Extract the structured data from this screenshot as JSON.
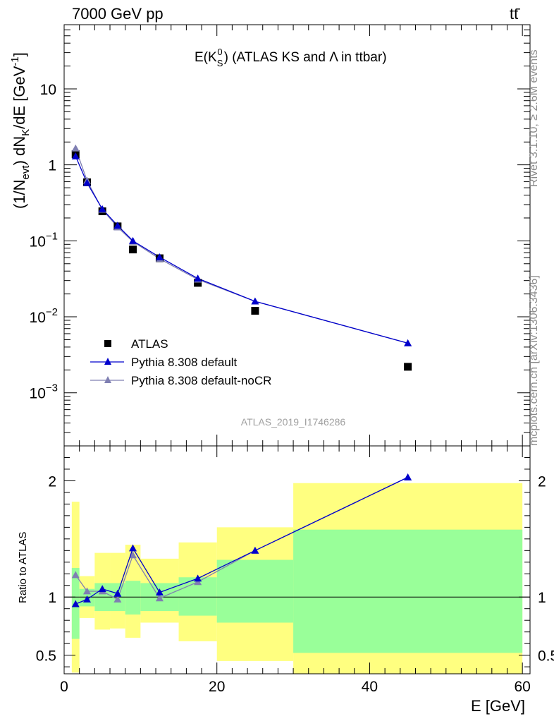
{
  "header": {
    "left": "7000 GeV pp",
    "right_base": "tt",
    "right_bar": "̄"
  },
  "side_labels": {
    "rivet": "Rivet 3.1.10, ≥ 2.6M events",
    "mcplots": "mcplots.cern.ch [arXiv:1306.3436]"
  },
  "chart_data": [
    {
      "type": "scatter",
      "title_parts": {
        "prefix": "E(K",
        "sub": "S",
        "sup": "0",
        "suffix": ") (ATLAS KS and Λ in ttbar)"
      },
      "ylabel_parts": {
        "p1": "(1/N",
        "s1": "evt",
        "p2": ") dN",
        "s2": "K",
        "p3": "/dE [GeV",
        "sup": "-1",
        "p4": "]"
      },
      "ylog": true,
      "ylim": [
        0.0002,
        70
      ],
      "xlim": [
        0,
        61
      ],
      "y_ticks": [
        {
          "value": 0.001,
          "base": "10",
          "exp": "−3"
        },
        {
          "value": 0.01,
          "base": "10",
          "exp": "−2"
        },
        {
          "value": 0.1,
          "base": "10",
          "exp": "−1"
        },
        {
          "value": 1,
          "label": "1"
        },
        {
          "value": 10,
          "label": "10"
        }
      ],
      "watermark": "ATLAS_2019_I1746286",
      "legend": {
        "position": "bottom-left",
        "entries": [
          "ATLAS",
          "Pythia 8.308 default",
          "Pythia 8.308 default-noCR"
        ]
      },
      "series": [
        {
          "name": "ATLAS",
          "marker": "square",
          "color": "#000000",
          "x": [
            1.5,
            3,
            5,
            7,
            9,
            12.5,
            17.5,
            25,
            45
          ],
          "y": [
            1.38,
            0.59,
            0.245,
            0.155,
            0.077,
            0.059,
            0.028,
            0.012,
            0.0022
          ]
        },
        {
          "name": "Pythia 8.308 default",
          "marker": "triangle",
          "color": "#0000cc",
          "x": [
            1.5,
            3,
            5,
            7,
            9,
            12.5,
            17.5,
            25,
            45
          ],
          "y": [
            1.3,
            0.58,
            0.262,
            0.159,
            0.1,
            0.061,
            0.032,
            0.016,
            0.0045
          ]
        },
        {
          "name": "Pythia 8.308 default-noCR",
          "marker": "triangle",
          "color": "#7f7fb2",
          "x": [
            1.5,
            3,
            5,
            7,
            9,
            12.5,
            17.5,
            25,
            45
          ],
          "y": [
            1.65,
            0.62,
            0.258,
            0.151,
            0.098,
            0.058,
            0.031,
            0.016,
            0.0045
          ]
        }
      ]
    },
    {
      "type": "line",
      "ylabel": "Ratio to ATLAS",
      "xlabel": "E [GeV]",
      "xlim": [
        0,
        61
      ],
      "ylim": [
        0.34,
        2.3
      ],
      "x_ticks": [
        0,
        20,
        40,
        60
      ],
      "y_ticks": [
        0.5,
        1,
        2
      ],
      "bands": [
        {
          "lo_x": 1,
          "hi_x": 2,
          "y1": [
            0.64,
            1.25
          ],
          "y2": [
            0.35,
            1.82
          ]
        },
        {
          "lo_x": 2,
          "hi_x": 4,
          "y1": [
            0.92,
            1.07
          ],
          "y2": [
            0.82,
            1.18
          ]
        },
        {
          "lo_x": 4,
          "hi_x": 6,
          "y1": [
            0.88,
            1.12
          ],
          "y2": [
            0.72,
            1.38
          ]
        },
        {
          "lo_x": 6,
          "hi_x": 8,
          "y1": [
            0.88,
            1.12
          ],
          "y2": [
            0.73,
            1.38
          ]
        },
        {
          "lo_x": 8,
          "hi_x": 10,
          "y1": [
            0.85,
            1.14
          ],
          "y2": [
            0.65,
            1.45
          ]
        },
        {
          "lo_x": 10,
          "hi_x": 15,
          "y1": [
            0.88,
            1.12
          ],
          "y2": [
            0.78,
            1.33
          ]
        },
        {
          "lo_x": 15,
          "hi_x": 20,
          "y1": [
            0.84,
            1.17
          ],
          "y2": [
            0.62,
            1.47
          ]
        },
        {
          "lo_x": 20,
          "hi_x": 30,
          "y1": [
            0.78,
            1.32
          ],
          "y2": [
            0.45,
            1.6
          ]
        },
        {
          "lo_x": 30,
          "hi_x": 60,
          "y1": [
            0.52,
            1.58
          ],
          "y2": [
            0.34,
            1.98
          ]
        }
      ],
      "series": [
        {
          "name": "Pythia 8.308 default",
          "color": "#0000cc",
          "x": [
            1.5,
            3,
            5,
            7,
            9,
            12.5,
            17.5,
            25,
            45
          ],
          "y": [
            0.94,
            0.98,
            1.07,
            1.03,
            1.42,
            1.04,
            1.16,
            1.4,
            2.03
          ]
        },
        {
          "name": "Pythia 8.308 default-noCR",
          "color": "#7f7fb2",
          "x": [
            1.5,
            3,
            5,
            7,
            9,
            12.5,
            17.5,
            25,
            45
          ],
          "y": [
            1.19,
            1.05,
            1.05,
            0.98,
            1.36,
            0.99,
            1.13,
            1.4,
            2.03
          ]
        }
      ]
    }
  ]
}
